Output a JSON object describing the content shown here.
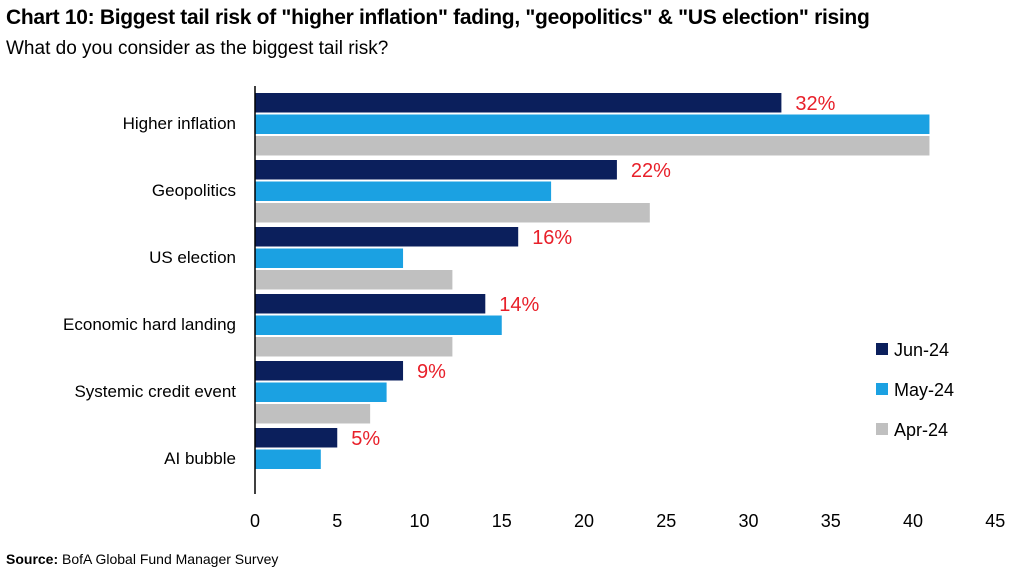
{
  "header": {
    "title": "Chart 10: Biggest tail risk of \"higher inflation\" fading, \"geopolitics\" & \"US election\" rising",
    "subtitle": "What do you consider as the biggest tail risk?"
  },
  "footer": {
    "source_label": "Source:",
    "source_text": "BofA Global Fund Manager Survey"
  },
  "colors": {
    "jun": "#0b1f5c",
    "may": "#1ba1e2",
    "apr": "#c0c0c0",
    "data_label": "#e8202a",
    "axis": "#000000"
  },
  "chart_data": {
    "type": "bar",
    "orientation": "horizontal",
    "categories": [
      "Higher inflation",
      "Geopolitics",
      "US election",
      "Economic hard landing",
      "Systemic credit event",
      "AI bubble"
    ],
    "series": [
      {
        "name": "Jun-24",
        "values": [
          32,
          22,
          16,
          14,
          9,
          5
        ],
        "data_labels": [
          "32%",
          "22%",
          "16%",
          "14%",
          "9%",
          "5%"
        ]
      },
      {
        "name": "May-24",
        "values": [
          41,
          18,
          9,
          15,
          8,
          4
        ]
      },
      {
        "name": "Apr-24",
        "values": [
          41,
          24,
          12,
          12,
          7,
          null
        ]
      }
    ],
    "xlim": [
      0,
      45
    ],
    "xticks": [
      0,
      5,
      10,
      15,
      20,
      25,
      30,
      35,
      40,
      45
    ],
    "grid": false,
    "legend": "bottom-right"
  }
}
